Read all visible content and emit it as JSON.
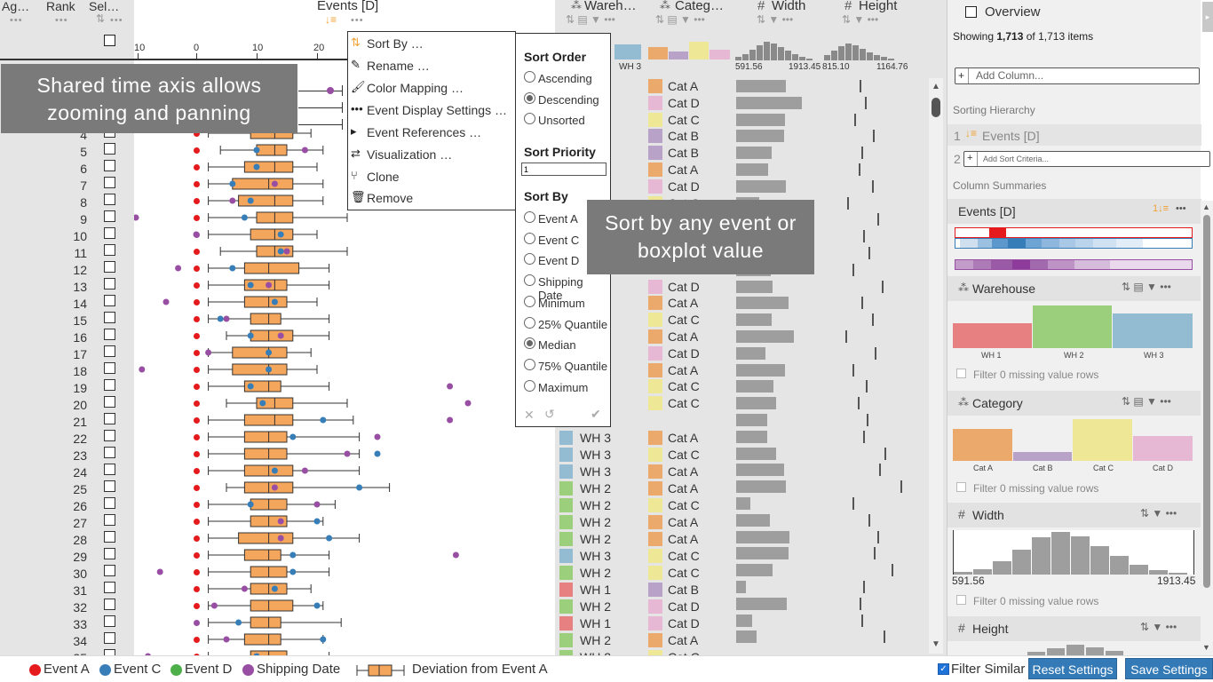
{
  "columns": {
    "aggregate": "Ag…",
    "rank": "Rank",
    "selection": "Sel…",
    "events": "Events [D]",
    "warehouse": "Wareh…",
    "category": "Categ…",
    "width": "Width",
    "height": "Height",
    "dots": "•••"
  },
  "axis_ticks": [
    "10",
    "0",
    "10",
    "20"
  ],
  "warehouse_summary_labels": [
    "WH 3"
  ],
  "width_range": [
    "591.56",
    "1913.45"
  ],
  "height_range": [
    "815.10",
    "1164.76"
  ],
  "rows": [
    {
      "rank": "4",
      "wh": "",
      "cat": ""
    },
    {
      "rank": "5",
      "wh": "",
      "cat": ""
    },
    {
      "rank": "6",
      "wh": "",
      "cat": ""
    },
    {
      "rank": "7",
      "wh": "",
      "cat": ""
    },
    {
      "rank": "8",
      "wh": "",
      "cat": ""
    },
    {
      "rank": "9",
      "wh": "",
      "cat": ""
    },
    {
      "rank": "10",
      "wh": "",
      "cat": ""
    },
    {
      "rank": "11",
      "wh": "",
      "cat": ""
    },
    {
      "rank": "12",
      "wh": "",
      "cat": ""
    },
    {
      "rank": "13",
      "wh": "",
      "cat": ""
    },
    {
      "rank": "14",
      "wh": "",
      "cat": ""
    },
    {
      "rank": "15",
      "wh": "",
      "cat": ""
    },
    {
      "rank": "16",
      "wh": "",
      "cat": ""
    },
    {
      "rank": "17",
      "wh": "",
      "cat": ""
    },
    {
      "rank": "18",
      "wh": "",
      "cat": ""
    },
    {
      "rank": "19",
      "wh": "",
      "cat": ""
    },
    {
      "rank": "20",
      "wh": "",
      "cat": ""
    },
    {
      "rank": "21",
      "wh": "",
      "cat": ""
    },
    {
      "rank": "22",
      "wh": "WH 3",
      "cat": "Cat A"
    },
    {
      "rank": "23",
      "wh": "WH 3",
      "cat": "Cat C"
    },
    {
      "rank": "24",
      "wh": "WH 3",
      "cat": "Cat A"
    },
    {
      "rank": "25",
      "wh": "WH 2",
      "cat": "Cat A"
    },
    {
      "rank": "26",
      "wh": "WH 2",
      "cat": "Cat C"
    },
    {
      "rank": "27",
      "wh": "WH 2",
      "cat": "Cat A"
    },
    {
      "rank": "28",
      "wh": "WH 2",
      "cat": "Cat A"
    },
    {
      "rank": "29",
      "wh": "WH 3",
      "cat": "Cat C"
    },
    {
      "rank": "30",
      "wh": "WH 2",
      "cat": "Cat C"
    },
    {
      "rank": "31",
      "wh": "WH 1",
      "cat": "Cat B"
    },
    {
      "rank": "32",
      "wh": "WH 2",
      "cat": "Cat D"
    },
    {
      "rank": "33",
      "wh": "WH 1",
      "cat": "Cat D"
    },
    {
      "rank": "34",
      "wh": "WH 2",
      "cat": "Cat A"
    },
    {
      "rank": "35",
      "wh": "WH 2",
      "cat": "Cat C"
    }
  ],
  "upper_cats": [
    "Cat A",
    "Cat D",
    "Cat C",
    "Cat B",
    "Cat B",
    "Cat A",
    "Cat D",
    "Cat C",
    "",
    "",
    "",
    "",
    "Cat D",
    "Cat A",
    "Cat C",
    "Cat A",
    "Cat D",
    "Cat A",
    "Cat C",
    "Cat C"
  ],
  "context_menu": {
    "items": [
      "Sort By …",
      "Rename …",
      "Color Mapping …",
      "Event Display Settings …",
      "Event References …",
      "Visualization …",
      "Clone",
      "Remove"
    ]
  },
  "sort_panel": {
    "order_title": "Sort Order",
    "order_options": [
      "Ascending",
      "Descending",
      "Unsorted"
    ],
    "priority_title": "Sort Priority",
    "priority_value": "1",
    "by_title": "Sort By",
    "by_options": [
      "Event A",
      "Event C",
      "Event D",
      "Shipping Date",
      "Minimum",
      "25% Quantile",
      "Median",
      "75% Quantile",
      "Maximum"
    ]
  },
  "notes": {
    "axis": "Shared time axis allows zooming and panning",
    "sort": "Sort by any event or boxplot value"
  },
  "sidebar": {
    "overview_label": "Overview",
    "showing_prefix": "Showing ",
    "showing_count": "1,713",
    "showing_mid": " of ",
    "showing_total": "1,713",
    "showing_suffix": " items",
    "add_column_placeholder": "Add Column...",
    "sorting_hierarchy": "Sorting Hierarchy",
    "sort1_index": "1",
    "sort1_label": "Events [D]",
    "sort2_index": "2",
    "add_sort_placeholder": "Add Sort Criteria...",
    "column_summaries": "Column Summaries",
    "events_summary": "Events [D]",
    "warehouse_summary": "Warehouse",
    "warehouse_bars": [
      "WH 1",
      "WH 2",
      "WH 3"
    ],
    "filter_missing": "Filter 0 missing value rows",
    "category_summary": "Category",
    "category_bars": [
      "Cat A",
      "Cat B",
      "Cat C",
      "Cat D"
    ],
    "width_summary": "Width",
    "width_min": "591.56",
    "width_max": "1913.45",
    "height_summary": "Height"
  },
  "legend": {
    "items": [
      "Event A",
      "Event C",
      "Event D",
      "Shipping Date"
    ],
    "deviation": "Deviation from Event A",
    "filter_similar": "Filter Similar",
    "reset": "Reset Settings",
    "save": "Save Settings"
  },
  "colors": {
    "event_a": "#e41a1c",
    "event_c": "#377eb8",
    "event_d": "#4daf4a",
    "shipping": "#984ea3",
    "box": "#f4a65d",
    "wh1": "#e78080",
    "wh2": "#9ccf7c",
    "wh3": "#93bcd3",
    "cat_a": "#ebaa6c",
    "cat_b": "#b8a2c8",
    "cat_c": "#ede796",
    "cat_d": "#e7b8d3",
    "button": "#337ab7"
  }
}
